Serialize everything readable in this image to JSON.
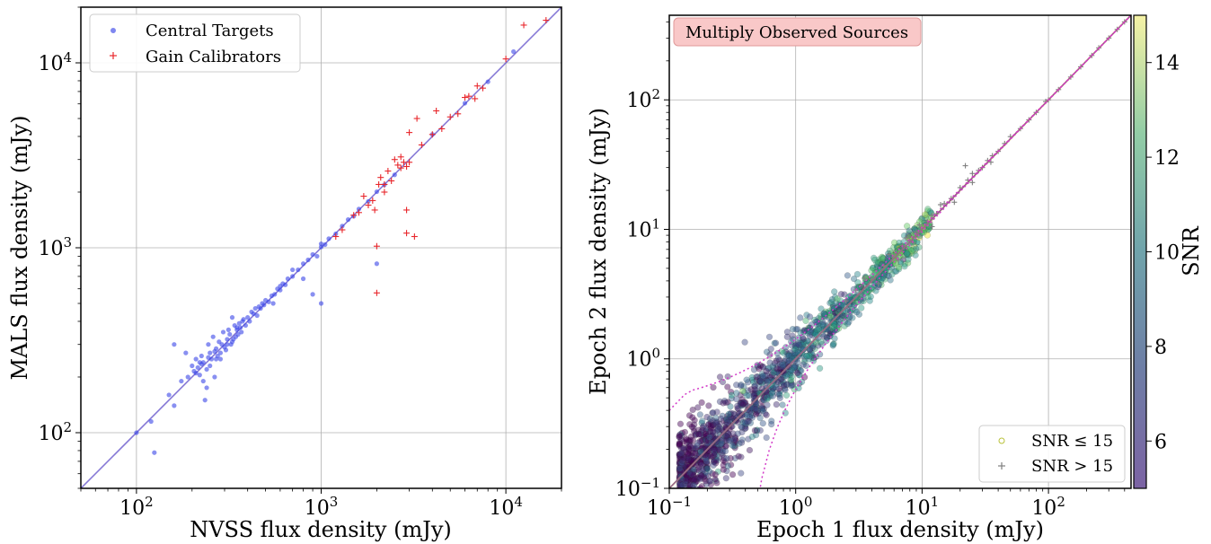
{
  "chart_data": [
    {
      "type": "scatter",
      "xlabel": "NVSS flux density (mJy)",
      "ylabel": "MALS flux density (mJy)",
      "xscale": "log",
      "yscale": "log",
      "xlim": [
        50,
        20000
      ],
      "ylim": [
        50,
        20000
      ],
      "grid": true,
      "legend_position": "upper-left",
      "x_tick_labels": [
        {
          "value": 100,
          "base": "10",
          "exp": "2"
        },
        {
          "value": 1000,
          "base": "10",
          "exp": "3"
        },
        {
          "value": 10000,
          "base": "10",
          "exp": "4"
        }
      ],
      "y_tick_labels": [
        {
          "value": 100,
          "base": "10",
          "exp": "2"
        },
        {
          "value": 1000,
          "base": "10",
          "exp": "3"
        },
        {
          "value": 10000,
          "base": "10",
          "exp": "4"
        }
      ],
      "one_to_one_line": {
        "color": "#6a5acd"
      },
      "series": [
        {
          "name": "Central Targets",
          "marker": "dot",
          "color": "#3a46e8",
          "points": [
            [
              100,
              100
            ],
            [
              120,
              115
            ],
            [
              125,
              78
            ],
            [
              150,
              160
            ],
            [
              160,
              300
            ],
            [
              175,
              190
            ],
            [
              185,
              270
            ],
            [
              190,
              200
            ],
            [
              200,
              230
            ],
            [
              205,
              215
            ],
            [
              210,
              250
            ],
            [
              215,
              225
            ],
            [
              220,
              205
            ],
            [
              225,
              260
            ],
            [
              230,
              240
            ],
            [
              235,
              150
            ],
            [
              240,
              220
            ],
            [
              245,
              300
            ],
            [
              250,
              270
            ],
            [
              255,
              250
            ],
            [
              260,
              330
            ],
            [
              265,
              200
            ],
            [
              270,
              285
            ],
            [
              275,
              260
            ],
            [
              280,
              310
            ],
            [
              285,
              250
            ],
            [
              290,
              300
            ],
            [
              295,
              350
            ],
            [
              300,
              290
            ],
            [
              305,
              280
            ],
            [
              310,
              320
            ],
            [
              315,
              360
            ],
            [
              320,
              340
            ],
            [
              325,
              300
            ],
            [
              330,
              420
            ],
            [
              335,
              320
            ],
            [
              340,
              380
            ],
            [
              345,
              330
            ],
            [
              350,
              360
            ],
            [
              355,
              340
            ],
            [
              360,
              390
            ],
            [
              365,
              370
            ],
            [
              370,
              350
            ],
            [
              375,
              400
            ],
            [
              380,
              410
            ],
            [
              390,
              380
            ],
            [
              400,
              420
            ],
            [
              410,
              400
            ],
            [
              420,
              450
            ],
            [
              430,
              440
            ],
            [
              440,
              470
            ],
            [
              450,
              430
            ],
            [
              460,
              480
            ],
            [
              470,
              470
            ],
            [
              480,
              500
            ],
            [
              490,
              490
            ],
            [
              500,
              520
            ],
            [
              520,
              510
            ],
            [
              540,
              550
            ],
            [
              560,
              560
            ],
            [
              580,
              600
            ],
            [
              600,
              590
            ],
            [
              620,
              640
            ],
            [
              640,
              630
            ],
            [
              660,
              680
            ],
            [
              700,
              700
            ],
            [
              750,
              760
            ],
            [
              800,
              820
            ],
            [
              850,
              860
            ],
            [
              900,
              920
            ],
            [
              950,
              900
            ],
            [
              1000,
              1010
            ],
            [
              1050,
              1040
            ],
            [
              1100,
              1120
            ],
            [
              1200,
              1190
            ],
            [
              1300,
              1310
            ],
            [
              1400,
              1420
            ],
            [
              1500,
              1480
            ],
            [
              1600,
              1620
            ],
            [
              1800,
              1780
            ],
            [
              2000,
              2010
            ],
            [
              2200,
              2190
            ],
            [
              2500,
              2480
            ],
            [
              2000,
              820
            ],
            [
              1000,
              500
            ],
            [
              900,
              560
            ],
            [
              800,
              680
            ],
            [
              1000,
              1050
            ],
            [
              700,
              760
            ],
            [
              600,
              620
            ],
            [
              550,
              500
            ],
            [
              4000,
              4100
            ],
            [
              6000,
              6050
            ],
            [
              8000,
              7900
            ],
            [
              11000,
              11500
            ],
            [
              160,
              140
            ],
            [
              210,
              210
            ],
            [
              225,
              235
            ],
            [
              245,
              255
            ],
            [
              265,
              275
            ],
            [
              285,
              270
            ],
            [
              310,
              300
            ],
            [
              330,
              310
            ],
            [
              350,
              370
            ],
            [
              230,
              190
            ],
            [
              240,
              175
            ],
            [
              220,
              240
            ],
            [
              250,
              230
            ],
            [
              270,
              250
            ]
          ]
        },
        {
          "name": "Gain Calibrators",
          "marker": "plus",
          "color": "#e8262b",
          "points": [
            [
              1500,
              1500
            ],
            [
              1700,
              1900
            ],
            [
              1800,
              1700
            ],
            [
              1900,
              1800
            ],
            [
              1950,
              1600
            ],
            [
              2000,
              1020
            ],
            [
              2000,
              570
            ],
            [
              2050,
              2200
            ],
            [
              2100,
              2400
            ],
            [
              2200,
              2000
            ],
            [
              2300,
              2600
            ],
            [
              2400,
              2300
            ],
            [
              2500,
              3000
            ],
            [
              2600,
              2800
            ],
            [
              2700,
              3100
            ],
            [
              2800,
              2900
            ],
            [
              2900,
              1600
            ],
            [
              2900,
              1200
            ],
            [
              3000,
              2900
            ],
            [
              3200,
              1150
            ],
            [
              3300,
              5000
            ],
            [
              3500,
              3600
            ],
            [
              4000,
              4100
            ],
            [
              4200,
              5500
            ],
            [
              4500,
              4400
            ],
            [
              5000,
              5100
            ],
            [
              5500,
              5300
            ],
            [
              6000,
              6500
            ],
            [
              6300,
              6600
            ],
            [
              6800,
              6400
            ],
            [
              7000,
              7500
            ],
            [
              7500,
              7300
            ],
            [
              10000,
              10500
            ],
            [
              12500,
              16000
            ],
            [
              16500,
              17000
            ],
            [
              1300,
              1250
            ],
            [
              1600,
              1550
            ],
            [
              2700,
              2700
            ],
            [
              2900,
              2750
            ],
            [
              3000,
              4200
            ],
            [
              2200,
              2200
            ],
            [
              1200,
              1150
            ]
          ]
        }
      ]
    },
    {
      "type": "scatter",
      "xlabel": "Epoch 1 flux density (mJy)",
      "ylabel": "Epoch 2 flux density (mJy)",
      "xscale": "log",
      "yscale": "log",
      "xlim": [
        0.1,
        450
      ],
      "ylim": [
        0.1,
        450
      ],
      "grid": true,
      "annotation": "Multiply Observed Sources",
      "legend_position": "lower-right",
      "colorbar": {
        "label": "SNR",
        "range": [
          5,
          15
        ],
        "ticks": [
          "6",
          "8",
          "10",
          "12",
          "14"
        ]
      },
      "x_tick_labels": [
        {
          "value": 0.1,
          "base": "10",
          "exp": "−1"
        },
        {
          "value": 1,
          "base": "10",
          "exp": "0"
        },
        {
          "value": 10,
          "base": "10",
          "exp": "1"
        },
        {
          "value": 100,
          "base": "10",
          "exp": "2"
        }
      ],
      "y_tick_labels": [
        {
          "value": 0.1,
          "base": "10",
          "exp": "−1"
        },
        {
          "value": 1,
          "base": "10",
          "exp": "0"
        },
        {
          "value": 10,
          "base": "10",
          "exp": "1"
        },
        {
          "value": 100,
          "base": "10",
          "exp": "2"
        }
      ],
      "reference_lines": [
        {
          "style": "solid",
          "color": "#c8a03c"
        },
        {
          "style": "solid",
          "color": "#7a49b8"
        },
        {
          "style": "dotted",
          "color": "#d23ac8"
        }
      ],
      "series": [
        {
          "name": "SNR ≤ 15",
          "legend_math": "SNR ≤ 15",
          "marker": "circle",
          "color_by": "SNR",
          "point_count": 1500
        },
        {
          "name": "SNR > 15",
          "legend_math": "SNR > 15",
          "marker": "plus",
          "color": "#7f7f7f",
          "points": [
            [
              4,
              4.1
            ],
            [
              5,
              5.2
            ],
            [
              6,
              6.1
            ],
            [
              7,
              7.5
            ],
            [
              8,
              8.1
            ],
            [
              9,
              9.6
            ],
            [
              10,
              10.2
            ],
            [
              11,
              11.5
            ],
            [
              12,
              12.8
            ],
            [
              13,
              13.2
            ],
            [
              15,
              15.8
            ],
            [
              17,
              17.3
            ],
            [
              20,
              21
            ],
            [
              22,
              31
            ],
            [
              23,
              24
            ],
            [
              25,
              27
            ],
            [
              28,
              28.5
            ],
            [
              30,
              30
            ],
            [
              33,
              34
            ],
            [
              36,
              37
            ],
            [
              40,
              40
            ],
            [
              45,
              46
            ],
            [
              50,
              52
            ],
            [
              60,
              60
            ],
            [
              70,
              70
            ],
            [
              80,
              80
            ],
            [
              95,
              97
            ],
            [
              100,
              100
            ],
            [
              120,
              120
            ],
            [
              150,
              150
            ],
            [
              180,
              180
            ],
            [
              220,
              220
            ],
            [
              250,
              252
            ],
            [
              300,
              300
            ],
            [
              350,
              350
            ],
            [
              400,
              400
            ],
            [
              3.5,
              4.2
            ],
            [
              4.5,
              3.8
            ],
            [
              5.5,
              6.4
            ],
            [
              6.5,
              5.8
            ],
            [
              7.5,
              8.6
            ],
            [
              8.5,
              7.9
            ],
            [
              9.5,
              10.8
            ],
            [
              12,
              10.5
            ],
            [
              14,
              15.5
            ],
            [
              18,
              16.2
            ],
            [
              25,
              23
            ],
            [
              35,
              33
            ],
            [
              3,
              3.4
            ],
            [
              2.5,
              2.8
            ]
          ]
        }
      ]
    }
  ]
}
